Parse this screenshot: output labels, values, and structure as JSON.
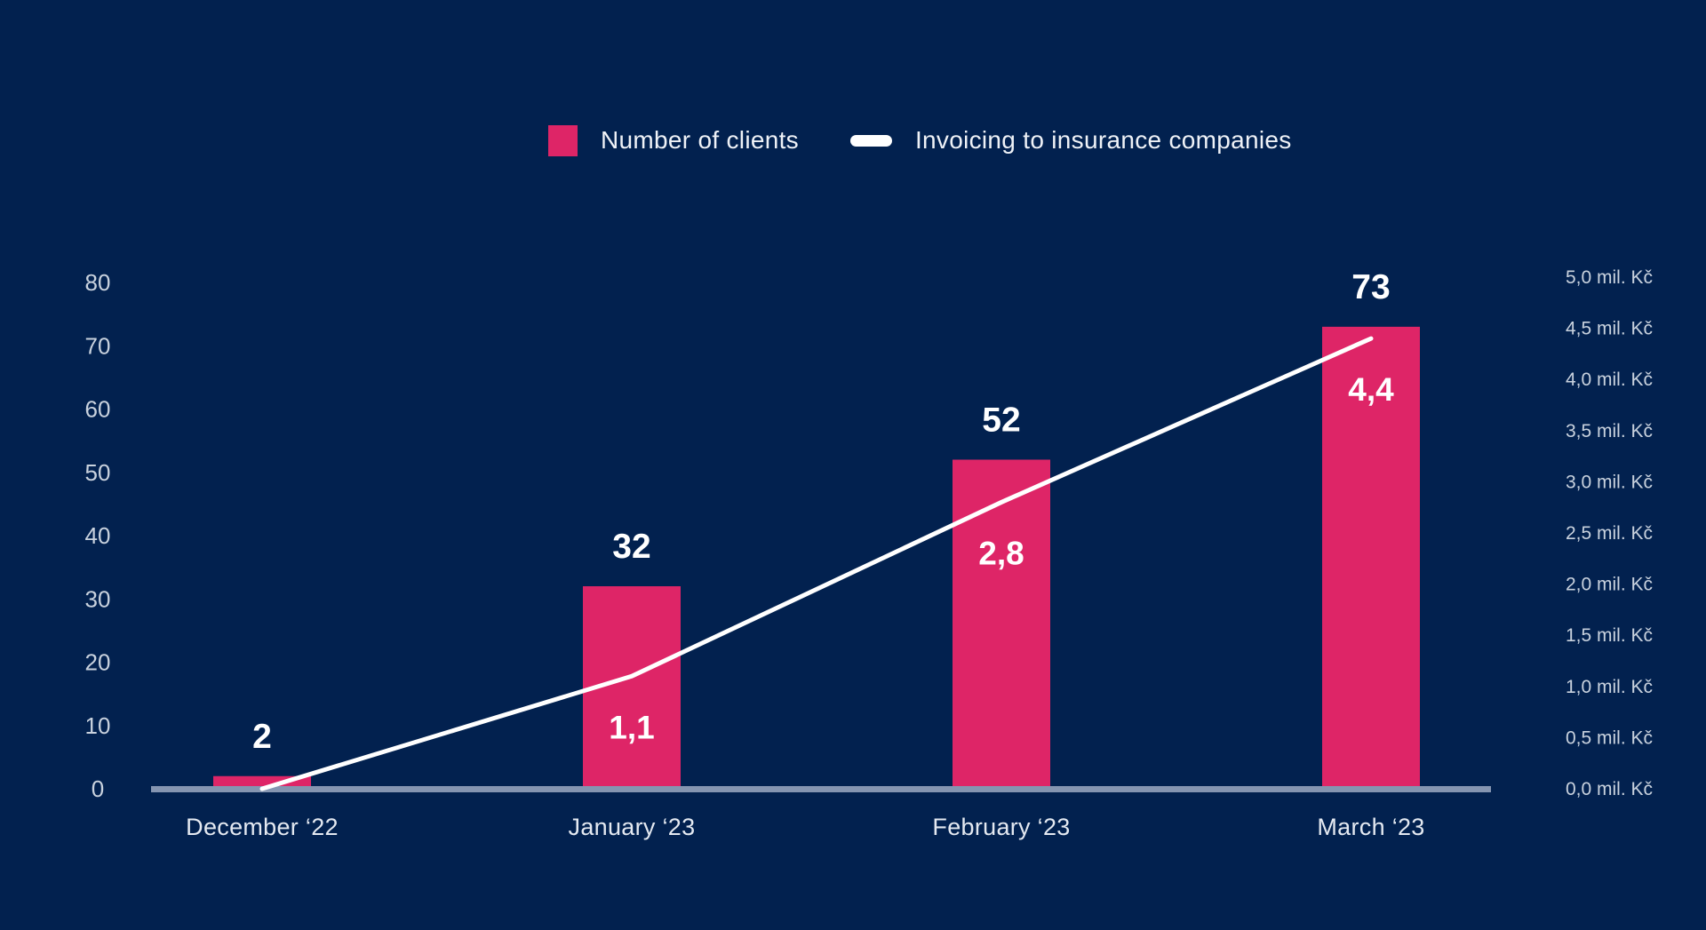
{
  "colors": {
    "background": "#02214F",
    "bar": "#DE2567",
    "line": "#FFFFFF",
    "axis_line": "#8595B1",
    "tick_text": "#C9D2DE",
    "data_label_text": "#FFFFFF"
  },
  "legend": {
    "items": [
      {
        "label": "Number of clients",
        "marker": "bar-swatch",
        "color": "#DE2567"
      },
      {
        "label": "Invoicing to insurance companies",
        "marker": "line-dash",
        "color": "#FFFFFF"
      }
    ]
  },
  "chart_data": {
    "type": "combo",
    "categories": [
      "December ‘22",
      "January ‘23",
      "February ‘23",
      "March ‘23"
    ],
    "series": [
      {
        "name": "Number of clients",
        "type": "bar",
        "axis": "left",
        "values": [
          2,
          32,
          52,
          73
        ],
        "data_labels": [
          "2",
          "32",
          "52",
          "73"
        ],
        "color": "#DE2567"
      },
      {
        "name": "Invoicing to insurance companies",
        "type": "line",
        "axis": "right",
        "values": [
          0,
          1.1,
          2.8,
          4.4
        ],
        "data_labels": [
          "",
          "1,1",
          "2,8",
          "4,4"
        ],
        "unit": "mil. Kč",
        "color": "#FFFFFF"
      }
    ],
    "left_axis": {
      "min": 0,
      "max": 80,
      "step": 10,
      "tick_labels": [
        "0",
        "10",
        "20",
        "30",
        "40",
        "50",
        "60",
        "70",
        "80"
      ]
    },
    "right_axis": {
      "min": 0,
      "max": 5,
      "step": 0.5,
      "tick_labels": [
        "0,0 mil. Kč",
        "0,5 mil. Kč",
        "1,0 mil. Kč",
        "1,5 mil. Kč",
        "2,0 mil. Kč",
        "2,5 mil. Kč",
        "3,0 mil. Kč",
        "3,5 mil. Kč",
        "4,0 mil. Kč",
        "4,5 mil. Kč",
        "5,0 mil. Kč"
      ]
    },
    "grid": false,
    "legend_position": "top"
  }
}
